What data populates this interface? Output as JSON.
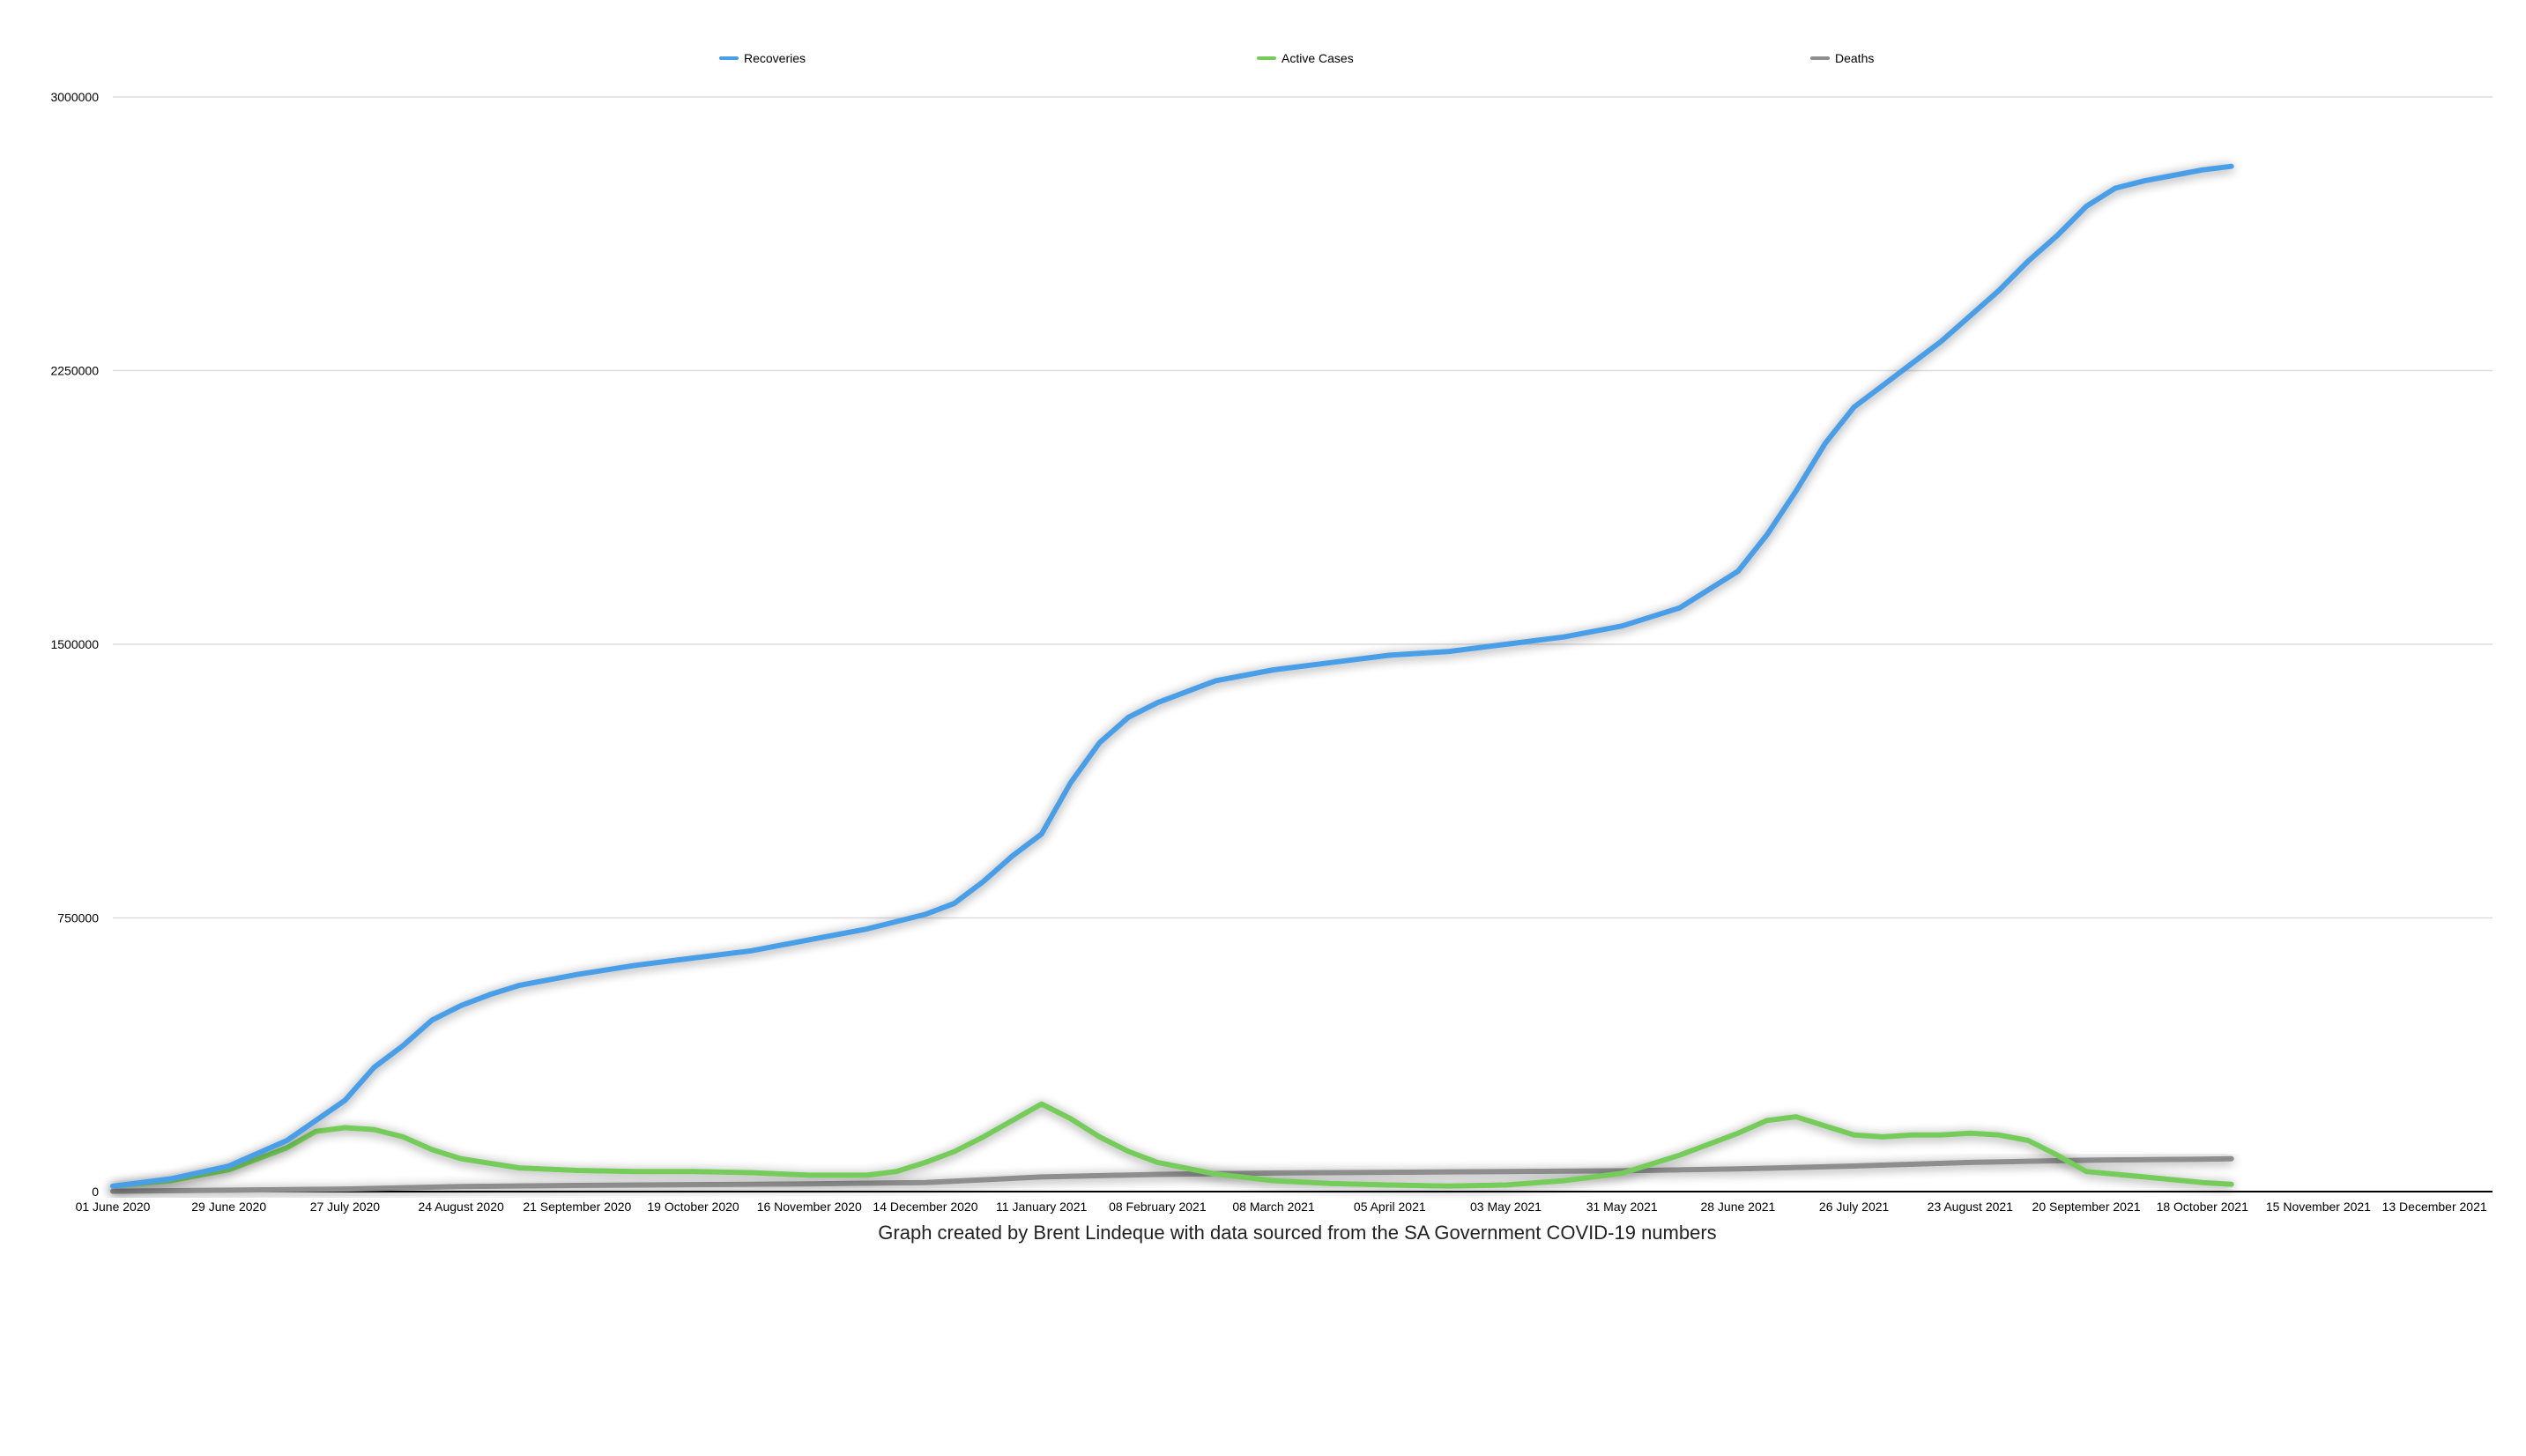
{
  "chart_data": {
    "type": "line",
    "title": "",
    "xlabel": "",
    "ylabel": "",
    "caption": "Graph created by Brent Lindeque with data sourced from the SA Government COVID-19 numbers",
    "x_range": [
      "2020-06-01",
      "2021-12-27"
    ],
    "ylim": [
      0,
      3000000
    ],
    "y_ticks": [
      {
        "value": 0,
        "label": "0"
      },
      {
        "value": 750000,
        "label": "750000"
      },
      {
        "value": 1500000,
        "label": "1500000"
      },
      {
        "value": 2250000,
        "label": "2250000"
      },
      {
        "value": 3000000,
        "label": "3000000"
      }
    ],
    "x_ticks": [
      {
        "date": "2020-06-01",
        "label": "01 June 2020"
      },
      {
        "date": "2020-06-29",
        "label": "29 June 2020"
      },
      {
        "date": "2020-07-27",
        "label": "27 July 2020"
      },
      {
        "date": "2020-08-24",
        "label": "24 August 2020"
      },
      {
        "date": "2020-09-21",
        "label": "21 September 2020"
      },
      {
        "date": "2020-10-19",
        "label": "19 October 2020"
      },
      {
        "date": "2020-11-16",
        "label": "16 November 2020"
      },
      {
        "date": "2020-12-14",
        "label": "14 December 2020"
      },
      {
        "date": "2021-01-11",
        "label": "11 January 2021"
      },
      {
        "date": "2021-02-08",
        "label": "08 February 2021"
      },
      {
        "date": "2021-03-08",
        "label": "08 March 2021"
      },
      {
        "date": "2021-04-05",
        "label": "05 April 2021"
      },
      {
        "date": "2021-05-03",
        "label": "03 May 2021"
      },
      {
        "date": "2021-05-31",
        "label": "31 May 2021"
      },
      {
        "date": "2021-06-28",
        "label": "28 June 2021"
      },
      {
        "date": "2021-07-26",
        "label": "26 July 2021"
      },
      {
        "date": "2021-08-23",
        "label": "23 August 2021"
      },
      {
        "date": "2021-09-20",
        "label": "20 September 2021"
      },
      {
        "date": "2021-10-18",
        "label": "18 October 2021"
      },
      {
        "date": "2021-11-15",
        "label": "15 November 2021"
      },
      {
        "date": "2021-12-13",
        "label": "13 December 2021"
      }
    ],
    "grid": true,
    "legend_position": "top",
    "series": [
      {
        "name": "Recoveries",
        "color": "#4a9ee8",
        "points": [
          [
            "2020-06-01",
            15000
          ],
          [
            "2020-06-15",
            35000
          ],
          [
            "2020-06-29",
            70000
          ],
          [
            "2020-07-13",
            140000
          ],
          [
            "2020-07-27",
            250000
          ],
          [
            "2020-08-03",
            340000
          ],
          [
            "2020-08-10",
            400000
          ],
          [
            "2020-08-17",
            470000
          ],
          [
            "2020-08-24",
            510000
          ],
          [
            "2020-08-31",
            540000
          ],
          [
            "2020-09-07",
            565000
          ],
          [
            "2020-09-21",
            595000
          ],
          [
            "2020-10-05",
            620000
          ],
          [
            "2020-10-19",
            640000
          ],
          [
            "2020-11-02",
            660000
          ],
          [
            "2020-11-16",
            690000
          ],
          [
            "2020-11-30",
            720000
          ],
          [
            "2020-12-14",
            760000
          ],
          [
            "2020-12-21",
            790000
          ],
          [
            "2020-12-28",
            850000
          ],
          [
            "2021-01-04",
            920000
          ],
          [
            "2021-01-11",
            980000
          ],
          [
            "2021-01-18",
            1120000
          ],
          [
            "2021-01-25",
            1230000
          ],
          [
            "2021-02-01",
            1300000
          ],
          [
            "2021-02-08",
            1340000
          ],
          [
            "2021-02-22",
            1400000
          ],
          [
            "2021-03-08",
            1430000
          ],
          [
            "2021-03-22",
            1450000
          ],
          [
            "2021-04-05",
            1470000
          ],
          [
            "2021-04-19",
            1480000
          ],
          [
            "2021-05-03",
            1500000
          ],
          [
            "2021-05-17",
            1520000
          ],
          [
            "2021-05-31",
            1550000
          ],
          [
            "2021-06-14",
            1600000
          ],
          [
            "2021-06-28",
            1700000
          ],
          [
            "2021-07-05",
            1800000
          ],
          [
            "2021-07-12",
            1920000
          ],
          [
            "2021-07-19",
            2050000
          ],
          [
            "2021-07-26",
            2150000
          ],
          [
            "2021-08-02",
            2210000
          ],
          [
            "2021-08-09",
            2270000
          ],
          [
            "2021-08-16",
            2330000
          ],
          [
            "2021-08-23",
            2400000
          ],
          [
            "2021-08-30",
            2470000
          ],
          [
            "2021-09-06",
            2550000
          ],
          [
            "2021-09-13",
            2620000
          ],
          [
            "2021-09-20",
            2700000
          ],
          [
            "2021-09-27",
            2750000
          ],
          [
            "2021-10-04",
            2770000
          ],
          [
            "2021-10-11",
            2785000
          ],
          [
            "2021-10-18",
            2800000
          ],
          [
            "2021-10-25",
            2810000
          ]
        ]
      },
      {
        "name": "Active Cases",
        "color": "#76cc5a",
        "points": [
          [
            "2020-06-01",
            15000
          ],
          [
            "2020-06-15",
            30000
          ],
          [
            "2020-06-29",
            60000
          ],
          [
            "2020-07-13",
            120000
          ],
          [
            "2020-07-20",
            165000
          ],
          [
            "2020-07-27",
            175000
          ],
          [
            "2020-08-03",
            170000
          ],
          [
            "2020-08-10",
            150000
          ],
          [
            "2020-08-17",
            115000
          ],
          [
            "2020-08-24",
            90000
          ],
          [
            "2020-09-07",
            65000
          ],
          [
            "2020-09-21",
            58000
          ],
          [
            "2020-10-05",
            55000
          ],
          [
            "2020-10-19",
            55000
          ],
          [
            "2020-11-02",
            52000
          ],
          [
            "2020-11-16",
            45000
          ],
          [
            "2020-11-30",
            45000
          ],
          [
            "2020-12-07",
            55000
          ],
          [
            "2020-12-14",
            80000
          ],
          [
            "2020-12-21",
            110000
          ],
          [
            "2020-12-28",
            150000
          ],
          [
            "2021-01-04",
            195000
          ],
          [
            "2021-01-11",
            240000
          ],
          [
            "2021-01-18",
            200000
          ],
          [
            "2021-01-25",
            150000
          ],
          [
            "2021-02-01",
            110000
          ],
          [
            "2021-02-08",
            80000
          ],
          [
            "2021-02-22",
            48000
          ],
          [
            "2021-03-08",
            30000
          ],
          [
            "2021-03-22",
            22000
          ],
          [
            "2021-04-05",
            18000
          ],
          [
            "2021-04-19",
            15000
          ],
          [
            "2021-05-03",
            18000
          ],
          [
            "2021-05-17",
            30000
          ],
          [
            "2021-05-31",
            50000
          ],
          [
            "2021-06-14",
            100000
          ],
          [
            "2021-06-28",
            160000
          ],
          [
            "2021-07-05",
            195000
          ],
          [
            "2021-07-12",
            205000
          ],
          [
            "2021-07-19",
            180000
          ],
          [
            "2021-07-26",
            155000
          ],
          [
            "2021-08-02",
            150000
          ],
          [
            "2021-08-09",
            155000
          ],
          [
            "2021-08-16",
            155000
          ],
          [
            "2021-08-23",
            160000
          ],
          [
            "2021-08-30",
            155000
          ],
          [
            "2021-09-06",
            140000
          ],
          [
            "2021-09-13",
            100000
          ],
          [
            "2021-09-20",
            55000
          ],
          [
            "2021-10-04",
            40000
          ],
          [
            "2021-10-18",
            25000
          ],
          [
            "2021-10-25",
            20000
          ]
        ]
      },
      {
        "name": "Deaths",
        "color": "#8e8e8e",
        "points": [
          [
            "2020-06-01",
            1000
          ],
          [
            "2020-07-27",
            7000
          ],
          [
            "2020-08-24",
            14000
          ],
          [
            "2020-09-21",
            17000
          ],
          [
            "2020-10-19",
            19000
          ],
          [
            "2020-11-16",
            21000
          ],
          [
            "2020-12-14",
            25000
          ],
          [
            "2021-01-11",
            40000
          ],
          [
            "2021-02-08",
            47000
          ],
          [
            "2021-03-08",
            51000
          ],
          [
            "2021-04-05",
            53000
          ],
          [
            "2021-05-03",
            55000
          ],
          [
            "2021-05-31",
            57000
          ],
          [
            "2021-06-28",
            62000
          ],
          [
            "2021-07-26",
            70000
          ],
          [
            "2021-08-23",
            80000
          ],
          [
            "2021-09-20",
            86000
          ],
          [
            "2021-10-18",
            89000
          ],
          [
            "2021-10-25",
            90000
          ]
        ]
      }
    ]
  }
}
